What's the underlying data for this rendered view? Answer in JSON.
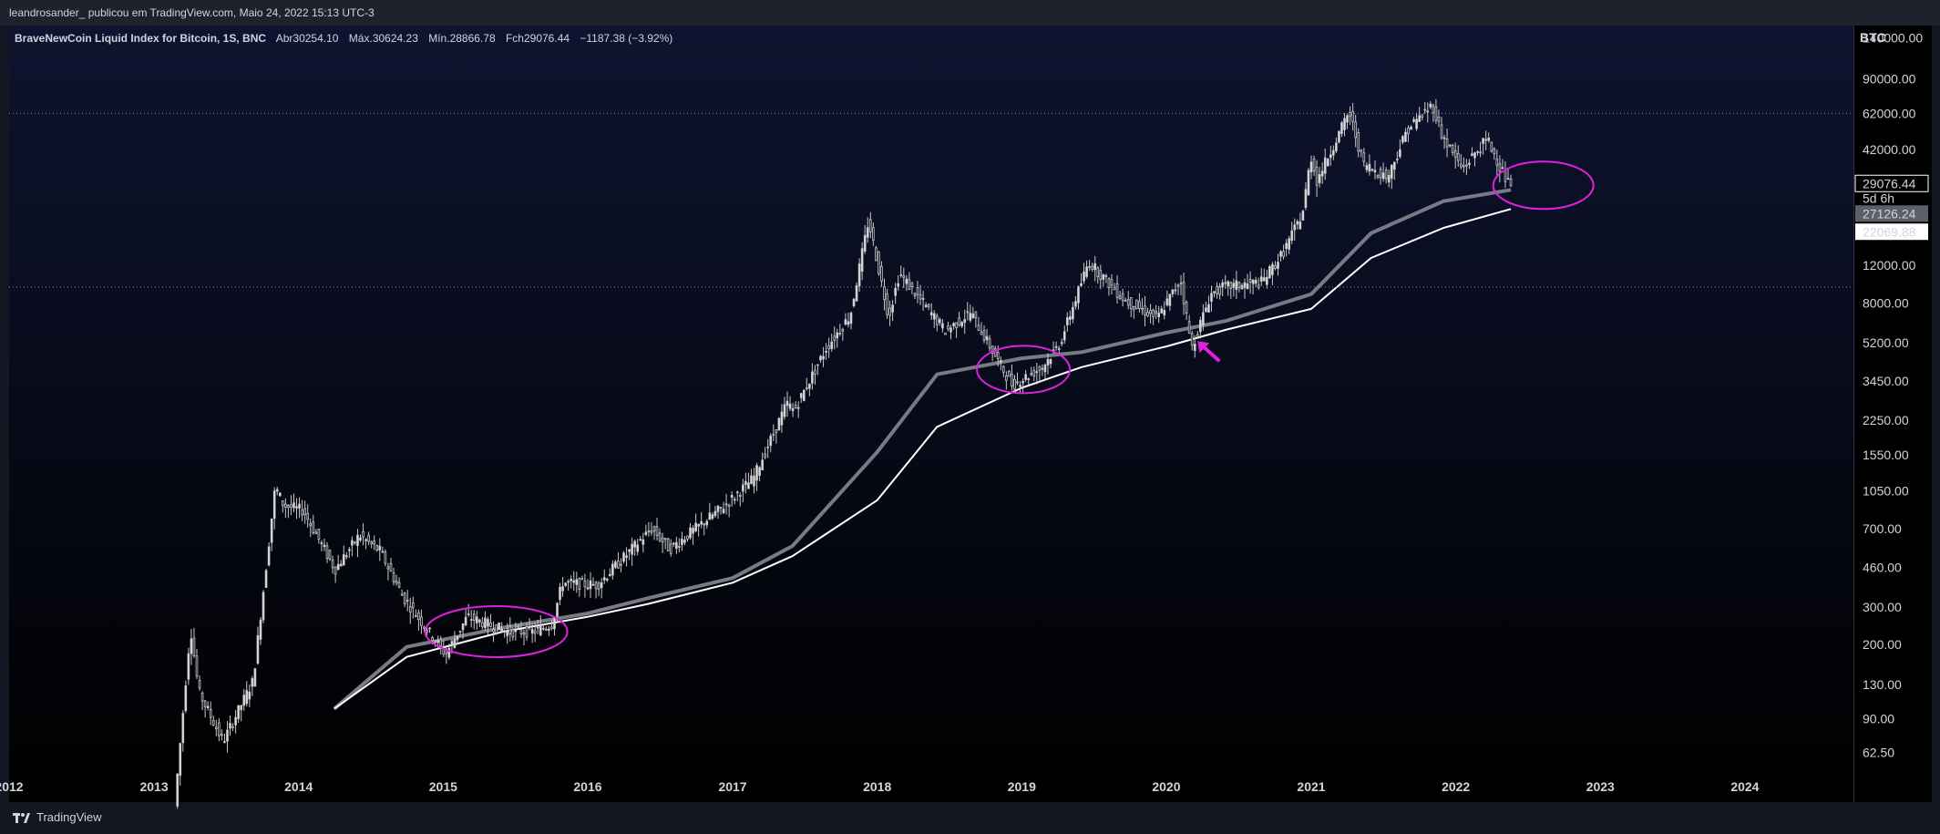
{
  "header": {
    "publisher_line": "leandrosander_ publicou em TradingView.com, Maio 24, 2022 15:13 UTC-3"
  },
  "legend": {
    "symbol": "BraveNewCoin Liquid Index for Bitcoin, 1S, BNC",
    "open_label": "Abr",
    "open_value": "30254.10",
    "high_label": "Máx.",
    "high_value": "30624.23",
    "low_label": "Mín.",
    "low_value": "28866.78",
    "close_label": "Fch",
    "close_value": "29076.44",
    "change": "−1187.38 (−3.92%)"
  },
  "price_axis": {
    "currency": "BTC",
    "ticks": [
      "140000.00",
      "90000.00",
      "62000.00",
      "42000.00",
      "29076.44",
      "5d 6h",
      "27126.24",
      "22069.88",
      "12000.00",
      "8000.00",
      "5200.00",
      "3450.00",
      "2250.00",
      "1550.00",
      "1050.00",
      "700.00",
      "460.00",
      "300.00",
      "200.00",
      "130.00",
      "90.00",
      "62.50"
    ],
    "current_price": "29076.44",
    "countdown": "5d 6h",
    "ma_grey_value": "27126.24",
    "ma_white_value": "22069.88"
  },
  "time_axis": {
    "labels": [
      "2012",
      "2013",
      "2014",
      "2015",
      "2016",
      "2017",
      "2018",
      "2019",
      "2020",
      "2021",
      "2022",
      "2023",
      "2024"
    ]
  },
  "footer": {
    "brand": "TradingView"
  },
  "colors": {
    "candle": "#c8c8c8",
    "ma_grey": "#787b86",
    "ma_white": "#ffffff",
    "highlight": "#e020e0",
    "background_top": "#0e1430"
  },
  "chart_data": {
    "type": "candlestick",
    "title": "BraveNewCoin Liquid Index for Bitcoin, 1S, BNC",
    "y_scale": "log",
    "ylim": [
      50,
      160000
    ],
    "x_range": [
      "2012-01-01",
      "2024-10-01"
    ],
    "price": {
      "x": [
        "2013-03-01",
        "2013-04-10",
        "2013-05-01",
        "2013-07-01",
        "2013-09-15",
        "2013-11-10",
        "2013-12-01",
        "2014-01-20",
        "2014-04-10",
        "2014-06-10",
        "2014-08-01",
        "2014-10-01",
        "2015-01-14",
        "2015-03-10",
        "2015-06-20",
        "2015-08-25",
        "2015-10-10",
        "2015-11-05",
        "2016-02-01",
        "2016-06-18",
        "2016-08-02",
        "2016-12-20",
        "2017-03-01",
        "2017-05-25",
        "2017-06-12",
        "2017-09-01",
        "2017-11-01",
        "2017-12-17",
        "2018-02-06",
        "2018-03-05",
        "2018-06-29",
        "2018-09-01",
        "2018-11-25",
        "2018-12-15",
        "2019-03-01",
        "2019-04-15",
        "2019-06-26",
        "2019-09-26",
        "2019-12-17",
        "2020-02-13",
        "2020-03-12",
        "2020-04-29",
        "2020-06-01",
        "2020-09-05",
        "2020-10-26",
        "2020-12-17",
        "2021-01-07",
        "2021-01-22",
        "2021-04-14",
        "2021-05-19",
        "2021-07-20",
        "2021-09-07",
        "2021-11-10",
        "2021-12-04",
        "2022-01-24",
        "2022-03-28",
        "2022-05-20"
      ],
      "values": [
        35,
        240,
        120,
        70,
        135,
        1100,
        900,
        850,
        450,
        650,
        550,
        330,
        180,
        270,
        230,
        230,
        250,
        390,
        380,
        700,
        560,
        900,
        1200,
        2700,
        2500,
        4900,
        7000,
        19500,
        6900,
        11000,
        5900,
        7200,
        3800,
        3300,
        4000,
        5200,
        12500,
        8200,
        6800,
        10300,
        4900,
        8800,
        9500,
        10000,
        13500,
        21000,
        39000,
        30000,
        63000,
        36000,
        31000,
        52000,
        68000,
        49000,
        34000,
        47000,
        29000
      ]
    },
    "series": [
      {
        "values_x": [
          "2014-04-01",
          "2014-10-01",
          "2015-06-01",
          "2016-01-01",
          "2016-06-01",
          "2017-01-01",
          "2017-06-01",
          "2018-01-01",
          "2018-06-01",
          "2019-01-01",
          "2019-06-01",
          "2020-01-01",
          "2020-06-01",
          "2021-01-01",
          "2021-06-01",
          "2021-12-01",
          "2022-05-20"
        ],
        "values": [
          100,
          195,
          240,
          280,
          330,
          410,
          580,
          1600,
          3700,
          4400,
          4700,
          5800,
          6600,
          8800,
          17000,
          24000,
          27126.24
        ]
      },
      {
        "values_x": [
          "2014-04-01",
          "2014-10-01",
          "2015-06-01",
          "2016-01-01",
          "2016-06-01",
          "2017-01-01",
          "2017-06-01",
          "2018-01-01",
          "2018-06-01",
          "2019-01-01",
          "2019-06-01",
          "2020-01-01",
          "2020-06-01",
          "2021-01-01",
          "2021-06-01",
          "2021-12-01",
          "2022-05-20"
        ],
        "values": [
          100,
          175,
          230,
          270,
          310,
          390,
          520,
          950,
          2100,
          3200,
          4000,
          5000,
          6000,
          7500,
          13000,
          18000,
          22069.88
        ]
      }
    ]
  }
}
